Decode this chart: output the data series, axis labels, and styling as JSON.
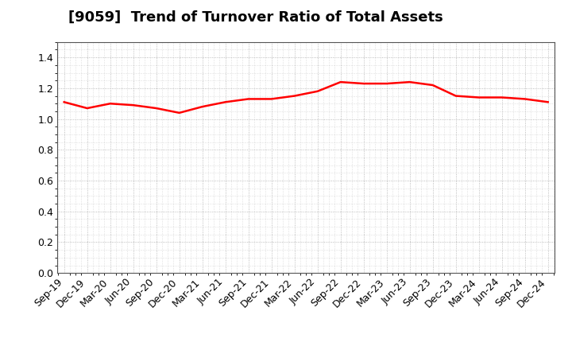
{
  "title": "[9059]  Trend of Turnover Ratio of Total Assets",
  "x_labels": [
    "Sep-19",
    "Dec-19",
    "Mar-20",
    "Jun-20",
    "Sep-20",
    "Dec-20",
    "Mar-21",
    "Jun-21",
    "Sep-21",
    "Dec-21",
    "Mar-22",
    "Jun-22",
    "Sep-22",
    "Dec-22",
    "Mar-23",
    "Jun-23",
    "Sep-23",
    "Dec-23",
    "Mar-24",
    "Jun-24",
    "Sep-24",
    "Dec-24"
  ],
  "values": [
    1.11,
    1.07,
    1.1,
    1.09,
    1.07,
    1.04,
    1.08,
    1.11,
    1.13,
    1.13,
    1.15,
    1.18,
    1.24,
    1.23,
    1.23,
    1.24,
    1.22,
    1.15,
    1.14,
    1.14,
    1.13,
    1.11
  ],
  "line_color": "#ff0000",
  "line_width": 1.8,
  "ylim": [
    0.0,
    1.5
  ],
  "yticks": [
    0.0,
    0.2,
    0.4,
    0.6,
    0.8,
    1.0,
    1.2,
    1.4
  ],
  "bg_color": "#ffffff",
  "plot_bg_color": "#ffffff",
  "grid_color": "#aaaaaa",
  "title_fontsize": 13,
  "tick_fontsize": 9
}
